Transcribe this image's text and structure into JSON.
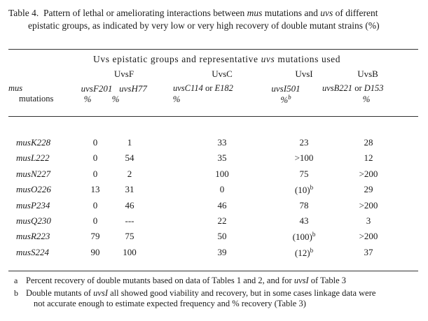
{
  "caption": {
    "label": "Table 4.",
    "line1_a": "Pattern of lethal or ameliorating interactions between",
    "line1_mus": "mus",
    "line1_b": "mutations and",
    "line1_uvs": "uvs",
    "line1_c": "of different",
    "line2": "epistatic groups, as indicated by very low or very high recovery of double mutant strains (%)"
  },
  "header": {
    "spanner_a": "Uvs epistatic groups and representative",
    "spanner_uvs": "uvs",
    "spanner_b": "mutations used",
    "groups": [
      "UvsF",
      "UvsC",
      "UvsI",
      "UvsB"
    ],
    "row_label_1": "mus",
    "row_label_2": "mutations",
    "columns": [
      {
        "name": "uvsF201",
        "unit": "%"
      },
      {
        "name": "uvsH77",
        "unit": "%"
      },
      {
        "name": "uvsC114",
        "connector": "or",
        "alt": "E182",
        "unit": "%"
      },
      {
        "name": "uvsI501",
        "unit": "%",
        "note": "b"
      },
      {
        "name": "uvsB221",
        "connector": "or",
        "alt": "D153",
        "unit": "%"
      }
    ]
  },
  "rows": [
    {
      "mutation": "musK228",
      "values": [
        "0",
        "1",
        "33",
        "23",
        "28"
      ],
      "notes": [
        "",
        "",
        "",
        "",
        ""
      ]
    },
    {
      "mutation": "musL222",
      "values": [
        "0",
        "54",
        "35",
        ">100",
        "12"
      ],
      "notes": [
        "",
        "",
        "",
        "",
        ""
      ]
    },
    {
      "mutation": "musN227",
      "values": [
        "0",
        "2",
        "100",
        "75",
        ">200"
      ],
      "notes": [
        "",
        "",
        "",
        "",
        ""
      ]
    },
    {
      "mutation": "musO226",
      "values": [
        "13",
        "31",
        "0",
        "(10)",
        "29"
      ],
      "notes": [
        "",
        "",
        "",
        "b",
        ""
      ]
    },
    {
      "mutation": "musP234",
      "values": [
        "0",
        "46",
        "46",
        "78",
        ">200"
      ],
      "notes": [
        "",
        "",
        "",
        "",
        ""
      ]
    },
    {
      "mutation": "musQ230",
      "values": [
        "0",
        "---",
        "22",
        "43",
        "3"
      ],
      "notes": [
        "",
        "",
        "",
        "",
        ""
      ]
    },
    {
      "mutation": "musR223",
      "values": [
        "79",
        "75",
        "50",
        "(100)",
        ">200"
      ],
      "notes": [
        "",
        "",
        "",
        "b",
        ""
      ]
    },
    {
      "mutation": "musS224",
      "values": [
        "90",
        "100",
        "39",
        "(12)",
        "37"
      ],
      "notes": [
        "",
        "",
        "",
        "b",
        ""
      ]
    }
  ],
  "footnotes": [
    {
      "mark": "a",
      "text_a": "Percent recovery of double mutants based on data of Tables 1 and 2, and for",
      "italic": "uvsI",
      "text_b": "of Table 3"
    },
    {
      "mark": "b",
      "text_a": "Double mutants of",
      "italic": "uvsI",
      "text_b": "all showed good viability and recovery, but in some cases  linkage data were",
      "line2": "not accurate enough to estimate expected frequency and % recovery (Table 3)"
    }
  ]
}
